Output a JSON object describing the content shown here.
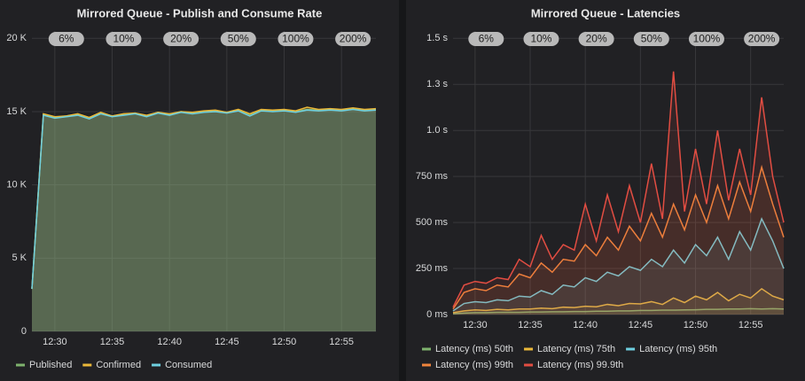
{
  "chart_data": [
    {
      "type": "line",
      "title": "Mirrored Queue - Publish and Consume Rate",
      "x": [
        "12:28",
        "12:29",
        "12:30",
        "12:31",
        "12:32",
        "12:33",
        "12:34",
        "12:35",
        "12:36",
        "12:37",
        "12:38",
        "12:39",
        "12:40",
        "12:41",
        "12:42",
        "12:43",
        "12:44",
        "12:45",
        "12:46",
        "12:47",
        "12:48",
        "12:49",
        "12:50",
        "12:51",
        "12:52",
        "12:53",
        "12:54",
        "12:55",
        "12:56",
        "12:57",
        "12:58"
      ],
      "xlim": [
        "12:28",
        "12:58"
      ],
      "xticks": [
        "12:30",
        "12:35",
        "12:40",
        "12:45",
        "12:50",
        "12:55"
      ],
      "ylim": [
        0,
        20500
      ],
      "yticks": [
        0,
        {
          "value": 5000,
          "label": "5 K"
        },
        {
          "value": 10000,
          "label": "10 K"
        },
        {
          "value": 15000,
          "label": "15 K"
        },
        {
          "value": 20000,
          "label": "20 K"
        }
      ],
      "grid": true,
      "area": true,
      "legend": "bottom",
      "annotations": [
        {
          "x": "12:31",
          "label": "6%"
        },
        {
          "x": "12:36",
          "label": "10%"
        },
        {
          "x": "12:41",
          "label": "20%"
        },
        {
          "x": "12:46",
          "label": "50%"
        },
        {
          "x": "12:51",
          "label": "100%"
        },
        {
          "x": "12:56",
          "label": "200%"
        }
      ],
      "series": [
        {
          "name": "Published",
          "color": "#7eb26d",
          "values": [
            2900,
            14800,
            14600,
            14700,
            14800,
            14600,
            14900,
            14700,
            14800,
            14900,
            14700,
            14950,
            14800,
            15000,
            14900,
            15000,
            15050,
            14950,
            15100,
            14800,
            15100,
            15050,
            15100,
            15000,
            15150,
            15100,
            15150,
            15100,
            15200,
            15100,
            15150
          ]
        },
        {
          "name": "Confirmed",
          "color": "#eab839",
          "values": [
            2900,
            14850,
            14650,
            14700,
            14850,
            14600,
            14950,
            14700,
            14850,
            14900,
            14750,
            14950,
            14850,
            15000,
            14950,
            15050,
            15100,
            14950,
            15150,
            14850,
            15150,
            15100,
            15150,
            15050,
            15300,
            15150,
            15200,
            15150,
            15250,
            15150,
            15200
          ]
        },
        {
          "name": "Consumed",
          "color": "#6ed0e0",
          "values": [
            2900,
            14750,
            14550,
            14650,
            14750,
            14500,
            14850,
            14650,
            14750,
            14850,
            14650,
            14900,
            14750,
            14950,
            14850,
            14950,
            15000,
            14900,
            15050,
            14700,
            15050,
            15000,
            15050,
            14950,
            15100,
            15050,
            15100,
            15050,
            15150,
            15050,
            15100
          ]
        }
      ]
    },
    {
      "type": "line",
      "title": "Mirrored Queue - Latencies",
      "x": [
        "12:28",
        "12:29",
        "12:30",
        "12:31",
        "12:32",
        "12:33",
        "12:34",
        "12:35",
        "12:36",
        "12:37",
        "12:38",
        "12:39",
        "12:40",
        "12:41",
        "12:42",
        "12:43",
        "12:44",
        "12:45",
        "12:46",
        "12:47",
        "12:48",
        "12:49",
        "12:50",
        "12:51",
        "12:52",
        "12:53",
        "12:54",
        "12:55",
        "12:56",
        "12:57",
        "12:58"
      ],
      "xlim": [
        "12:28",
        "12:58"
      ],
      "xticks": [
        "12:30",
        "12:35",
        "12:40",
        "12:45",
        "12:50",
        "12:55"
      ],
      "ylim": [
        0,
        1540
      ],
      "yticks": [
        {
          "value": 0,
          "label": "0 ms"
        },
        {
          "value": 250,
          "label": "250 ms"
        },
        {
          "value": 500,
          "label": "500 ms"
        },
        {
          "value": 750,
          "label": "750 ms"
        },
        {
          "value": 1000,
          "label": "1.0 s"
        },
        {
          "value": 1250,
          "label": "1.3 s"
        },
        {
          "value": 1500,
          "label": "1.5 s"
        }
      ],
      "grid": true,
      "area": true,
      "legend": "bottom",
      "annotations": [
        {
          "x": "12:31",
          "label": "6%"
        },
        {
          "x": "12:36",
          "label": "10%"
        },
        {
          "x": "12:41",
          "label": "20%"
        },
        {
          "x": "12:46",
          "label": "50%"
        },
        {
          "x": "12:51",
          "label": "100%"
        },
        {
          "x": "12:56",
          "label": "200%"
        }
      ],
      "series": [
        {
          "name": "Latency (ms) 50th",
          "color": "#7eb26d",
          "values": [
            5,
            8,
            10,
            10,
            12,
            12,
            12,
            14,
            14,
            15,
            15,
            16,
            16,
            18,
            18,
            20,
            20,
            22,
            22,
            24,
            24,
            25,
            26,
            28,
            28,
            30,
            30,
            32,
            30,
            32,
            30
          ]
        },
        {
          "name": "Latency (ms) 75th",
          "color": "#eab839",
          "values": [
            10,
            20,
            25,
            22,
            28,
            25,
            30,
            30,
            35,
            32,
            40,
            38,
            45,
            42,
            55,
            48,
            60,
            58,
            70,
            55,
            90,
            65,
            100,
            80,
            120,
            75,
            110,
            90,
            140,
            100,
            80
          ]
        },
        {
          "name": "Latency (ms) 95th",
          "color": "#6ed0e0",
          "values": [
            20,
            60,
            70,
            65,
            80,
            75,
            100,
            95,
            130,
            110,
            160,
            150,
            200,
            180,
            230,
            210,
            260,
            240,
            300,
            260,
            350,
            280,
            380,
            320,
            420,
            300,
            450,
            350,
            520,
            400,
            250
          ]
        },
        {
          "name": "Latency (ms) 99th",
          "color": "#ef843c",
          "values": [
            30,
            120,
            140,
            130,
            160,
            150,
            220,
            200,
            280,
            230,
            300,
            290,
            380,
            320,
            420,
            350,
            480,
            400,
            550,
            420,
            600,
            460,
            650,
            500,
            700,
            520,
            720,
            560,
            800,
            600,
            420
          ]
        },
        {
          "name": "Latency (ms) 99.9th",
          "color": "#e24d42",
          "values": [
            40,
            160,
            180,
            170,
            200,
            190,
            300,
            260,
            430,
            300,
            380,
            350,
            600,
            400,
            650,
            450,
            700,
            500,
            820,
            520,
            1320,
            560,
            900,
            600,
            1000,
            620,
            900,
            650,
            1180,
            750,
            500
          ]
        }
      ]
    }
  ]
}
